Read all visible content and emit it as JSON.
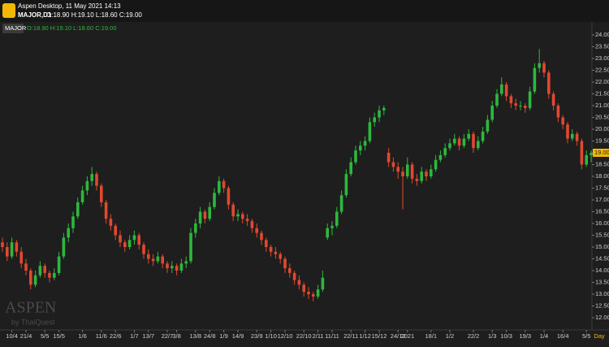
{
  "header": {
    "app_title": "Aspen Desktop, 11 May 2021 14:13",
    "symbol": "MAJOR,D1",
    "ohlc": "O:18.90 H:19.10 L:18.60 C:19.00"
  },
  "watermark": {
    "brand": "ASPEN",
    "by": "by ThaiQuest"
  },
  "chart_data": {
    "type": "candlestick",
    "series_name": "MAJOR",
    "legend_ohlc": "O:18.90 H:19.10 L:18.60 C:19.00",
    "up_color": "#2db83d",
    "down_color": "#e0492f",
    "grid": false,
    "x_unit": "Day",
    "price_tag": {
      "value": 19.0,
      "label": "19.00"
    },
    "ylim": [
      12,
      24
    ],
    "yticks": [
      {
        "value": 12,
        "label": "12.00"
      },
      {
        "value": 12.5,
        "label": "12.50"
      },
      {
        "value": 13,
        "label": "13.00"
      },
      {
        "value": 13.5,
        "label": "13.50"
      },
      {
        "value": 14,
        "label": "14.00"
      },
      {
        "value": 14.5,
        "label": "14.50"
      },
      {
        "value": 15,
        "label": "15.00"
      },
      {
        "value": 15.5,
        "label": "15.50"
      },
      {
        "value": 16,
        "label": "16.00"
      },
      {
        "value": 16.5,
        "label": "16.50"
      },
      {
        "value": 17,
        "label": "17.00"
      },
      {
        "value": 17.5,
        "label": "17.50"
      },
      {
        "value": 18,
        "label": "18.00"
      },
      {
        "value": 18.5,
        "label": "18.50"
      },
      {
        "value": 19,
        "label": "19.00"
      },
      {
        "value": 19.5,
        "label": "19.50"
      },
      {
        "value": 20,
        "label": "20.00"
      },
      {
        "value": 20.5,
        "label": "20.50"
      },
      {
        "value": 21,
        "label": "21.00"
      },
      {
        "value": 21.5,
        "label": "21.50"
      },
      {
        "value": 22,
        "label": "22.00"
      },
      {
        "value": 22.5,
        "label": "22.50"
      },
      {
        "value": 23,
        "label": "23.00"
      },
      {
        "value": 23.5,
        "label": "23.50"
      },
      {
        "value": 24,
        "label": "24.00"
      }
    ],
    "xticks": [
      {
        "value": 2,
        "label": "10/4"
      },
      {
        "value": 5,
        "label": "21/4"
      },
      {
        "value": 9,
        "label": "5/5"
      },
      {
        "value": 12,
        "label": "15/5"
      },
      {
        "value": 17,
        "label": "1/6"
      },
      {
        "value": 21,
        "label": "11/6"
      },
      {
        "value": 24,
        "label": "22/6"
      },
      {
        "value": 28,
        "label": "1/7"
      },
      {
        "value": 31,
        "label": "13/7"
      },
      {
        "value": 35,
        "label": "22/7"
      },
      {
        "value": 37,
        "label": "3/8"
      },
      {
        "value": 41,
        "label": "13/8"
      },
      {
        "value": 44,
        "label": "24/8"
      },
      {
        "value": 47,
        "label": "1/9"
      },
      {
        "value": 50,
        "label": "14/9"
      },
      {
        "value": 54,
        "label": "23/9"
      },
      {
        "value": 57,
        "label": "1/10"
      },
      {
        "value": 60,
        "label": "12/10"
      },
      {
        "value": 64,
        "label": "22/10"
      },
      {
        "value": 67,
        "label": "2/11"
      },
      {
        "value": 70,
        "label": "11/11"
      },
      {
        "value": 74,
        "label": "22/11"
      },
      {
        "value": 77,
        "label": "1/12"
      },
      {
        "value": 80,
        "label": "15/12"
      },
      {
        "value": 84,
        "label": "24/12"
      },
      {
        "value": 86,
        "label": "2021"
      },
      {
        "value": 91,
        "label": "18/1"
      },
      {
        "value": 95,
        "label": "1/2"
      },
      {
        "value": 100,
        "label": "22/2"
      },
      {
        "value": 104,
        "label": "1/3"
      },
      {
        "value": 107,
        "label": "10/3"
      },
      {
        "value": 111,
        "label": "19/3"
      },
      {
        "value": 115,
        "label": "1/4"
      },
      {
        "value": 119,
        "label": "16/4"
      },
      {
        "value": 124,
        "label": "5/5"
      }
    ],
    "candles": [
      [
        15.2,
        15.4,
        14.8,
        15.0
      ],
      [
        15.0,
        15.2,
        14.4,
        14.6
      ],
      [
        14.6,
        15.4,
        14.5,
        15.2
      ],
      [
        15.2,
        15.3,
        14.6,
        14.8
      ],
      [
        14.8,
        15.0,
        14.1,
        14.3
      ],
      [
        14.3,
        14.5,
        13.8,
        14.0
      ],
      [
        14.0,
        14.1,
        13.2,
        13.4
      ],
      [
        13.4,
        14.0,
        13.3,
        13.8
      ],
      [
        13.8,
        14.4,
        13.7,
        14.2
      ],
      [
        14.2,
        14.3,
        13.7,
        13.9
      ],
      [
        13.9,
        14.0,
        13.5,
        13.7
      ],
      [
        13.7,
        14.1,
        13.6,
        13.9
      ],
      [
        13.9,
        14.8,
        13.8,
        14.6
      ],
      [
        14.6,
        15.6,
        14.5,
        15.4
      ],
      [
        15.4,
        16.0,
        15.2,
        15.8
      ],
      [
        15.8,
        16.5,
        15.6,
        16.3
      ],
      [
        16.3,
        17.1,
        16.2,
        16.9
      ],
      [
        16.9,
        17.6,
        16.8,
        17.4
      ],
      [
        17.4,
        18.0,
        17.2,
        17.8
      ],
      [
        17.8,
        18.4,
        17.6,
        18.1
      ],
      [
        18.1,
        18.2,
        17.4,
        17.6
      ],
      [
        17.6,
        17.7,
        16.7,
        16.9
      ],
      [
        16.9,
        17.0,
        16.0,
        16.2
      ],
      [
        16.2,
        16.4,
        15.7,
        15.9
      ],
      [
        15.9,
        16.0,
        15.3,
        15.5
      ],
      [
        15.5,
        15.7,
        15.0,
        15.2
      ],
      [
        15.2,
        15.3,
        14.8,
        15.0
      ],
      [
        15.0,
        15.5,
        14.9,
        15.3
      ],
      [
        15.3,
        15.7,
        15.1,
        15.5
      ],
      [
        15.5,
        15.6,
        14.9,
        15.1
      ],
      [
        15.1,
        15.2,
        14.5,
        14.7
      ],
      [
        14.7,
        14.9,
        14.3,
        14.5
      ],
      [
        14.5,
        14.7,
        14.2,
        14.4
      ],
      [
        14.4,
        14.8,
        14.3,
        14.6
      ],
      [
        14.6,
        14.7,
        14.1,
        14.3
      ],
      [
        14.3,
        14.4,
        13.9,
        14.1
      ],
      [
        14.1,
        14.4,
        13.9,
        14.2
      ],
      [
        14.2,
        14.3,
        13.8,
        14.0
      ],
      [
        14.0,
        14.5,
        13.9,
        14.3
      ],
      [
        14.3,
        14.6,
        14.1,
        14.4
      ],
      [
        14.4,
        15.8,
        14.3,
        15.6
      ],
      [
        15.6,
        16.2,
        15.4,
        16.0
      ],
      [
        16.0,
        16.7,
        15.8,
        16.5
      ],
      [
        16.5,
        16.6,
        16.0,
        16.2
      ],
      [
        16.2,
        16.9,
        16.1,
        16.7
      ],
      [
        16.7,
        17.5,
        16.6,
        17.3
      ],
      [
        17.3,
        18.0,
        17.2,
        17.8
      ],
      [
        17.8,
        17.9,
        17.3,
        17.5
      ],
      [
        17.5,
        17.6,
        16.6,
        16.8
      ],
      [
        16.8,
        16.9,
        16.1,
        16.3
      ],
      [
        16.3,
        16.6,
        16.1,
        16.4
      ],
      [
        16.4,
        16.5,
        16.0,
        16.2
      ],
      [
        16.2,
        16.4,
        15.9,
        16.1
      ],
      [
        16.1,
        16.2,
        15.6,
        15.8
      ],
      [
        15.8,
        16.0,
        15.4,
        15.6
      ],
      [
        15.6,
        15.7,
        15.1,
        15.3
      ],
      [
        15.3,
        15.4,
        14.8,
        15.0
      ],
      [
        15.0,
        15.1,
        14.6,
        14.8
      ],
      [
        14.8,
        15.0,
        14.5,
        14.7
      ],
      [
        14.7,
        14.8,
        14.3,
        14.5
      ],
      [
        14.5,
        14.6,
        13.9,
        14.1
      ],
      [
        14.1,
        14.3,
        13.7,
        13.9
      ],
      [
        13.9,
        14.0,
        13.4,
        13.6
      ],
      [
        13.6,
        13.8,
        13.2,
        13.4
      ],
      [
        13.4,
        13.5,
        12.9,
        13.1
      ],
      [
        13.1,
        13.3,
        12.8,
        13.0
      ],
      [
        13.0,
        13.1,
        12.7,
        12.9
      ],
      [
        12.9,
        13.4,
        12.8,
        13.2
      ],
      [
        13.2,
        14.0,
        13.1,
        13.7
      ],
      [
        15.4,
        16.0,
        15.3,
        15.8
      ],
      [
        15.8,
        16.1,
        15.5,
        15.9
      ],
      [
        15.9,
        16.7,
        15.8,
        16.5
      ],
      [
        16.5,
        17.4,
        16.4,
        17.2
      ],
      [
        17.2,
        18.3,
        17.1,
        18.1
      ],
      [
        18.1,
        18.8,
        18.0,
        18.6
      ],
      [
        18.6,
        19.3,
        18.5,
        19.1
      ],
      [
        19.1,
        19.5,
        18.9,
        19.3
      ],
      [
        19.3,
        19.7,
        19.1,
        19.5
      ],
      [
        19.5,
        20.5,
        19.4,
        20.3
      ],
      [
        20.3,
        20.7,
        20.1,
        20.5
      ],
      [
        20.5,
        21.0,
        20.3,
        20.8
      ],
      [
        20.8,
        21.0,
        20.6,
        20.9
      ],
      [
        19.0,
        19.2,
        18.4,
        18.6
      ],
      [
        18.6,
        18.8,
        18.2,
        18.4
      ],
      [
        18.4,
        18.6,
        17.9,
        18.2
      ],
      [
        18.2,
        18.4,
        16.6,
        18.0
      ],
      [
        18.0,
        18.8,
        17.9,
        18.5
      ],
      [
        18.5,
        18.6,
        17.7,
        17.9
      ],
      [
        17.9,
        18.1,
        17.6,
        17.8
      ],
      [
        17.8,
        18.4,
        17.7,
        18.2
      ],
      [
        18.2,
        18.3,
        17.8,
        18.0
      ],
      [
        18.0,
        18.5,
        17.9,
        18.3
      ],
      [
        18.3,
        18.9,
        18.2,
        18.7
      ],
      [
        18.7,
        19.1,
        18.6,
        18.9
      ],
      [
        18.9,
        19.4,
        18.8,
        19.2
      ],
      [
        19.2,
        19.6,
        19.1,
        19.4
      ],
      [
        19.4,
        19.8,
        19.3,
        19.6
      ],
      [
        19.6,
        19.7,
        19.1,
        19.3
      ],
      [
        19.3,
        19.8,
        19.2,
        19.6
      ],
      [
        19.6,
        20.0,
        19.5,
        19.8
      ],
      [
        19.8,
        19.9,
        19.0,
        19.2
      ],
      [
        19.2,
        19.7,
        19.1,
        19.5
      ],
      [
        19.5,
        20.1,
        19.4,
        19.9
      ],
      [
        19.9,
        20.6,
        19.8,
        20.4
      ],
      [
        20.4,
        21.2,
        20.3,
        21.0
      ],
      [
        21.0,
        21.7,
        20.9,
        21.5
      ],
      [
        21.5,
        22.2,
        21.4,
        21.9
      ],
      [
        21.9,
        22.0,
        21.2,
        21.4
      ],
      [
        21.4,
        21.5,
        20.9,
        21.1
      ],
      [
        21.1,
        21.3,
        20.8,
        21.0
      ],
      [
        21.0,
        21.2,
        20.8,
        21.0
      ],
      [
        21.0,
        21.1,
        20.7,
        20.9
      ],
      [
        20.9,
        21.8,
        20.8,
        21.6
      ],
      [
        21.6,
        22.8,
        21.5,
        22.6
      ],
      [
        22.6,
        23.4,
        22.4,
        22.8
      ],
      [
        22.8,
        22.9,
        22.2,
        22.4
      ],
      [
        22.4,
        22.5,
        21.3,
        21.5
      ],
      [
        21.5,
        21.6,
        20.8,
        21.0
      ],
      [
        21.0,
        21.1,
        20.3,
        20.5
      ],
      [
        20.5,
        20.6,
        20.0,
        20.2
      ],
      [
        20.2,
        20.3,
        19.4,
        19.6
      ],
      [
        19.6,
        20.0,
        19.5,
        19.8
      ],
      [
        19.8,
        19.9,
        19.3,
        19.5
      ],
      [
        19.5,
        19.6,
        18.3,
        18.5
      ],
      [
        18.5,
        19.1,
        18.4,
        18.9
      ],
      [
        18.9,
        19.1,
        18.6,
        19.0
      ]
    ]
  }
}
